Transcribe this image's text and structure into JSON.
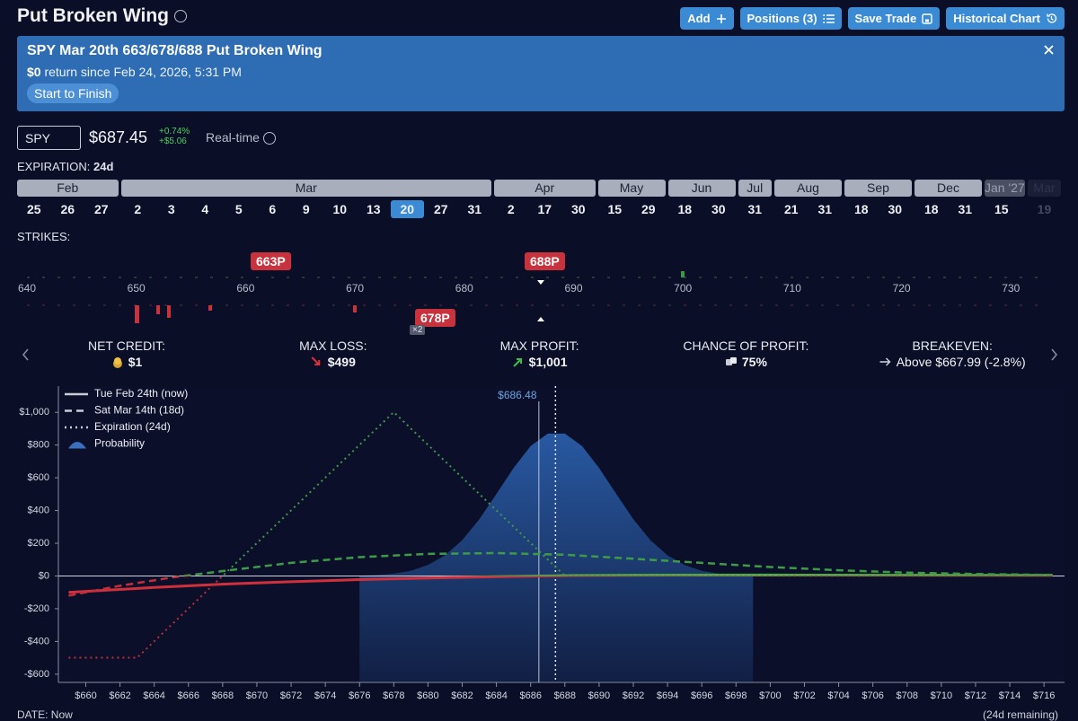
{
  "header": {
    "title": "Put Broken Wing",
    "buttons": [
      "Add",
      "Positions (3)",
      "Save Trade",
      "Historical Chart"
    ]
  },
  "banner": {
    "title": "SPY Mar 20th 663/678/688 Put Broken Wing",
    "return_amount": "$0",
    "return_text": "return since Feb 24, 2026, 5:31 PM",
    "mode": "Start to Finish"
  },
  "ticker": {
    "symbol": "SPY",
    "price": "$687.45",
    "change_pct": "+0.74%",
    "change_abs": "+$5.06",
    "feed": "Real-time"
  },
  "expiration": {
    "label": "EXPIRATION:",
    "value": "24d",
    "months": [
      {
        "name": "Feb",
        "days": [
          "25",
          "26",
          "27"
        ]
      },
      {
        "name": "Mar",
        "days": [
          "2",
          "3",
          "4",
          "5",
          "6",
          "9",
          "10",
          "13",
          "20",
          "27",
          "31"
        ]
      },
      {
        "name": "Apr",
        "days": [
          "2",
          "17",
          "30"
        ]
      },
      {
        "name": "May",
        "days": [
          "15",
          "29"
        ]
      },
      {
        "name": "Jun",
        "days": [
          "18",
          "30"
        ]
      },
      {
        "name": "Jul",
        "days": [
          "31"
        ]
      },
      {
        "name": "Aug",
        "days": [
          "21",
          "31"
        ]
      },
      {
        "name": "Sep",
        "days": [
          "18",
          "30"
        ]
      },
      {
        "name": "Dec",
        "days": [
          "18",
          "31"
        ]
      },
      {
        "name": "Jan '27",
        "days": [
          "15"
        ]
      },
      {
        "name": "Mar",
        "days": [
          "19"
        ]
      }
    ],
    "selected": {
      "month": 1,
      "day": 8
    }
  },
  "strikes": {
    "label": "STRIKES:",
    "axis": [
      "640",
      "650",
      "660",
      "670",
      "680",
      "690",
      "700",
      "710",
      "720",
      "730"
    ],
    "legs": [
      "663P",
      "688P",
      "678P"
    ],
    "quantity": "×2"
  },
  "stats": [
    {
      "label": "NET CREDIT:",
      "value": "$1"
    },
    {
      "label": "MAX LOSS:",
      "value": "$499"
    },
    {
      "label": "MAX PROFIT:",
      "value": "$1,001"
    },
    {
      "label": "CHANCE OF PROFIT:",
      "value": "75%"
    },
    {
      "label": "BREAKEVEN:",
      "value": "Above $667.99 (-2.8%)"
    }
  ],
  "chart_data": {
    "type": "line",
    "xlim": [
      658.4,
      717.2
    ],
    "xticks": [
      {
        "value": 660,
        "label": "$660"
      },
      {
        "value": 662,
        "label": "$662"
      },
      {
        "value": 664,
        "label": "$664"
      },
      {
        "value": 666,
        "label": "$666"
      },
      {
        "value": 668,
        "label": "$668"
      },
      {
        "value": 670,
        "label": "$670"
      },
      {
        "value": 672,
        "label": "$672"
      },
      {
        "value": 674,
        "label": "$674"
      },
      {
        "value": 676,
        "label": "$676"
      },
      {
        "value": 678,
        "label": "$678"
      },
      {
        "value": 680,
        "label": "$680"
      },
      {
        "value": 682,
        "label": "$682"
      },
      {
        "value": 684,
        "label": "$684"
      },
      {
        "value": 686,
        "label": "$686"
      },
      {
        "value": 688,
        "label": "$688"
      },
      {
        "value": 690,
        "label": "$690"
      },
      {
        "value": 692,
        "label": "$692"
      },
      {
        "value": 694,
        "label": "$694"
      },
      {
        "value": 696,
        "label": "$696"
      },
      {
        "value": 698,
        "label": "$698"
      },
      {
        "value": 700,
        "label": "$700"
      },
      {
        "value": 702,
        "label": "$702"
      },
      {
        "value": 704,
        "label": "$704"
      },
      {
        "value": 706,
        "label": "$706"
      },
      {
        "value": 708,
        "label": "$708"
      },
      {
        "value": 710,
        "label": "$710"
      },
      {
        "value": 712,
        "label": "$712"
      },
      {
        "value": 714,
        "label": "$714"
      },
      {
        "value": 716,
        "label": "$716"
      }
    ],
    "ylim": [
      -650,
      1160
    ],
    "yticks": [
      {
        "value": -600,
        "label": "-$600"
      },
      {
        "value": -400,
        "label": "-$400"
      },
      {
        "value": -200,
        "label": "-$200"
      },
      {
        "value": 0,
        "label": "$0"
      },
      {
        "value": 200,
        "label": "$200"
      },
      {
        "value": 400,
        "label": "$400"
      },
      {
        "value": 600,
        "label": "$600"
      },
      {
        "value": 800,
        "label": "$800"
      },
      {
        "value": 1000,
        "label": "$1,000"
      }
    ],
    "series": [
      {
        "name": "Tue Feb 24th (now)",
        "style": "solid",
        "color": "#46b04a",
        "negative_color": "#d0303c",
        "x": [
          659,
          664,
          668,
          672,
          676,
          680,
          684,
          688,
          692,
          700,
          708,
          716.5
        ],
        "values": [
          -100,
          -70,
          -50,
          -35,
          -22,
          -12,
          -4,
          2,
          5,
          6,
          5,
          4
        ]
      },
      {
        "name": "Sat Mar 14th (18d)",
        "style": "dashed",
        "color": "#3f9a48",
        "negative_color": "#c0303a",
        "x": [
          659,
          662,
          665,
          668,
          672,
          676,
          680,
          684,
          688,
          692,
          696,
          700,
          704,
          708,
          712,
          716.5
        ],
        "values": [
          -120,
          -60,
          -10,
          30,
          80,
          115,
          135,
          140,
          130,
          105,
          80,
          55,
          35,
          20,
          12,
          6
        ]
      },
      {
        "name": "Expiration (24d)",
        "style": "dotted",
        "color": "#3f9a48",
        "negative_color": "#b8303a",
        "x": [
          659,
          663,
          678,
          688,
          716.5
        ],
        "values": [
          -499,
          -499,
          1001,
          1,
          1
        ]
      },
      {
        "name": "Probability",
        "style": "area",
        "color": "#2a5da8",
        "x": [
          676,
          677,
          678,
          679,
          680,
          681,
          682,
          683,
          684,
          685,
          686,
          687,
          688,
          689,
          690,
          691,
          692,
          693,
          694,
          695,
          696,
          697,
          698,
          699
        ],
        "values": [
          2,
          6,
          14,
          32,
          67,
          126,
          219,
          347,
          501,
          660,
          794,
          870,
          870,
          794,
          660,
          501,
          347,
          219,
          126,
          67,
          32,
          14,
          6,
          2
        ]
      }
    ],
    "price_marker": {
      "value": 686.48,
      "label": "$686.48"
    },
    "current_marker": 687.45,
    "legend": "top-left"
  },
  "footer": {
    "date_label": "DATE: Now",
    "remaining": "(24d remaining)"
  }
}
